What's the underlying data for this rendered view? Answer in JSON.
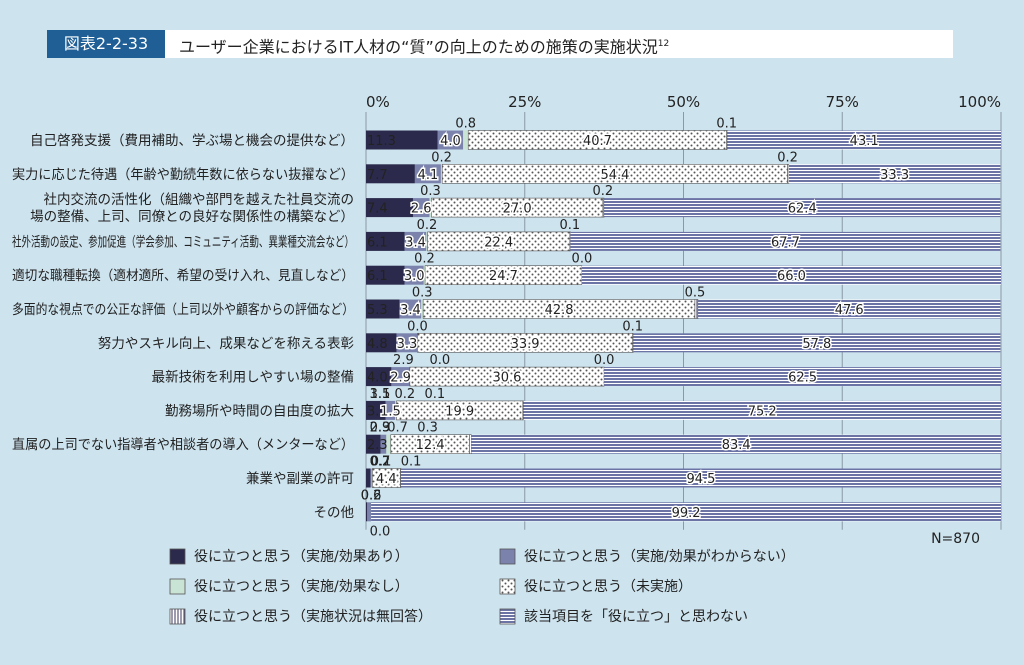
{
  "header": {
    "figure_number": "図表2-2-33",
    "title": "ユーザー企業におけるIT人材の“質”の向上のための施策の実施状況",
    "footnote_ref": "12"
  },
  "colors": {
    "background": "#cde3ee",
    "navy": "#2b2a4c",
    "slate": "#7b83ad",
    "mint": "#c9e3d4",
    "header_blue": "#1f5f96"
  },
  "chart_data": {
    "type": "bar",
    "orientation": "horizontal",
    "stacked": true,
    "xlim": [
      0,
      100
    ],
    "x_ticks": [
      "0%",
      "25%",
      "50%",
      "75%",
      "100%"
    ],
    "categories": [
      "自己啓発支援（費用補助、学ぶ場と機会の提供など）",
      "実力に応じた待遇（年齢や勤続年数に依らない抜擢など）",
      "社内交流の活性化（組織や部門を越えた社員交流の場の整備、上司、同僚との良好な関係性の構築など）",
      "社外活動の設定、参加促進（学会参加、コミュニティ活動、異業種交流会など）",
      "適切な職種転換（適材適所、希望の受け入れ、見直しなど）",
      "多面的な視点での公正な評価（上司以外や顧客からの評価など）",
      "努力やスキル向上、成果などを称える表彰",
      "最新技術を利用しやすい場の整備",
      "勤務場所や時間の自由度の拡大",
      "直属の上司でない指導者や相談者の導入（メンターなど）",
      "兼業や副業の許可",
      "その他"
    ],
    "category_lines": [
      [
        "自己啓発支援（費用補助、学ぶ場と機会の提供など）"
      ],
      [
        "実力に応じた待遇（年齢や勤続年数に依らない抜擢など）"
      ],
      [
        "社内交流の活性化（組織や部門を越えた社員交流の",
        "場の整備、上司、同僚との良好な関係性の構築など）"
      ],
      [
        "社外活動の設定、参加促進（学会参加、コミュニティ活動、異業種交流会など）"
      ],
      [
        "適切な職種転換（適材適所、希望の受け入れ、見直しなど）"
      ],
      [
        "多面的な視点での公正な評価（上司以外や顧客からの評価など）"
      ],
      [
        "努力やスキル向上、成果などを称える表彰"
      ],
      [
        "最新技術を利用しやすい場の整備"
      ],
      [
        "勤務場所や時間の自由度の拡大"
      ],
      [
        "直属の上司でない指導者や相談者の導入（メンターなど）"
      ],
      [
        "兼業や副業の許可"
      ],
      [
        "その他"
      ]
    ],
    "series": [
      {
        "name": "役に立つと思う（実施/効果あり）",
        "color": "#2b2a4c",
        "pattern": "solid",
        "values": [
          11.3,
          7.7,
          7.4,
          6.1,
          6.1,
          5.3,
          4.8,
          4.0,
          3.1,
          2.3,
          0.7,
          0.2
        ]
      },
      {
        "name": "役に立つと思う（実施/効果がわからない）",
        "color": "#7b83ad",
        "pattern": "solid",
        "values": [
          4.0,
          4.1,
          2.6,
          3.4,
          3.0,
          3.4,
          3.3,
          2.9,
          1.5,
          0.9,
          0.2,
          0.6
        ]
      },
      {
        "name": "役に立つと思う（実施/効果なし）",
        "color": "#c9e3d4",
        "pattern": "solid",
        "values": [
          0.8,
          0.2,
          0.3,
          0.2,
          0.2,
          0.3,
          0.0,
          0.0,
          0.2,
          0.7,
          0.1,
          0.0
        ]
      },
      {
        "name": "役に立つと思う（未実施）",
        "color": "#ffffff",
        "pattern": "dots",
        "values": [
          40.7,
          54.4,
          27.0,
          22.4,
          24.7,
          42.8,
          33.9,
          30.6,
          19.9,
          12.4,
          4.4,
          0.0
        ]
      },
      {
        "name": "役に立つと思う（実施状況は無回答）",
        "color": "#ffffff",
        "pattern": "vlines",
        "values": [
          0.1,
          0.2,
          0.2,
          0.1,
          0.0,
          0.5,
          0.1,
          0.0,
          0.1,
          0.3,
          0.1,
          0.0
        ]
      },
      {
        "name": "該当項目を「役に立つ」と思わない",
        "color": "#6c74a6",
        "pattern": "hlines",
        "values": [
          43.1,
          33.3,
          62.4,
          67.7,
          66.0,
          47.6,
          57.8,
          62.5,
          75.2,
          83.4,
          94.5,
          99.2
        ]
      }
    ],
    "top_labels": [
      [
        "0.8",
        "0.1"
      ],
      [
        "0.2",
        "0.2"
      ],
      [
        "0.3",
        "0.2"
      ],
      [
        "0.2",
        "0.1"
      ],
      [
        "0.2",
        "0.0"
      ],
      [
        "0.3",
        "0.5"
      ],
      [
        "0.0",
        "0.1"
      ],
      [
        "2.9",
        "0.0",
        "0.0"
      ],
      [
        "3.1",
        "1.5",
        "0.2",
        "0.1"
      ],
      [
        "2.3",
        "0.9",
        "0.7",
        "0.3"
      ],
      [
        "0.7",
        "0.2",
        "0.1",
        "0.1"
      ],
      [
        "0.2",
        "0.6"
      ]
    ],
    "bottom_labels": [
      [],
      [],
      [],
      [],
      [],
      [],
      [],
      [],
      [],
      [],
      [],
      [
        "0.0"
      ]
    ],
    "n_label": "N=870",
    "grid": true,
    "legend_position": "bottom"
  }
}
